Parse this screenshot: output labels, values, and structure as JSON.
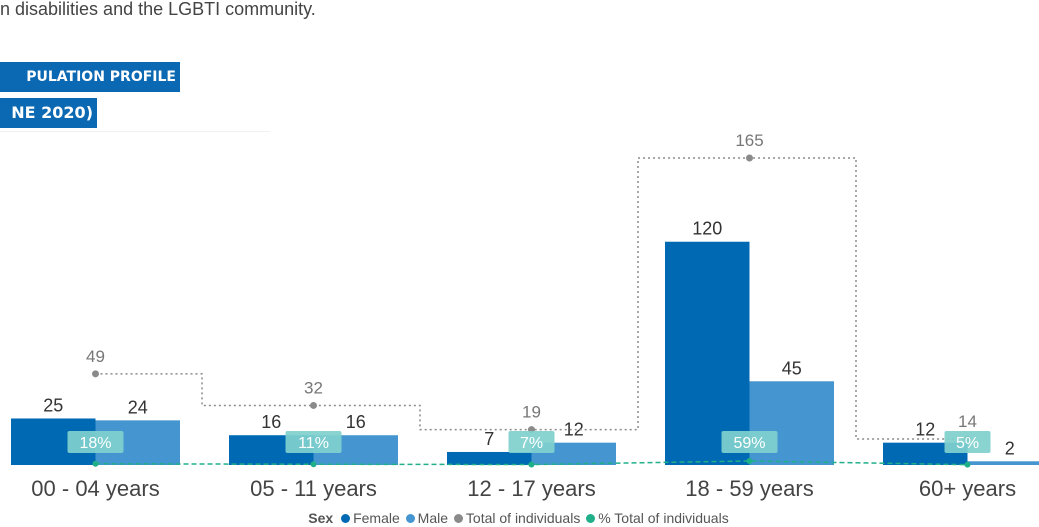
{
  "intro_text": "n disabilities and the LGBTI community.",
  "ribbon_line1": "PULATION PROFILE",
  "ribbon_line2": "NE 2020)",
  "colors": {
    "female": "#0069b4",
    "male": "#4596d0",
    "total": "#8a8a8a",
    "pct": "#1fb08a",
    "pct_label_bg": "#7fd0cd"
  },
  "legend": {
    "title": "Sex",
    "items": [
      "Female",
      "Male",
      "Total of individuals",
      "% Total of individuals"
    ]
  },
  "chart_data": {
    "type": "bar",
    "categories": [
      "00 - 04 years",
      "05 - 11 years",
      "12 - 17 years",
      "18 - 59 years",
      "60+ years"
    ],
    "series": [
      {
        "name": "Female",
        "type": "bar",
        "values": [
          25,
          16,
          7,
          120,
          12
        ]
      },
      {
        "name": "Male",
        "type": "bar",
        "values": [
          24,
          16,
          12,
          45,
          2
        ]
      },
      {
        "name": "Total of individuals",
        "type": "step-line",
        "values": [
          49,
          32,
          19,
          165,
          14
        ]
      },
      {
        "name": "% Total of individuals",
        "type": "line",
        "values": [
          18,
          11,
          7,
          59,
          5
        ],
        "labels": [
          "18%",
          "11%",
          "7%",
          "59%",
          "5%"
        ]
      }
    ],
    "ylim": [
      0,
      165
    ],
    "grid": false,
    "legend_position": "bottom"
  }
}
